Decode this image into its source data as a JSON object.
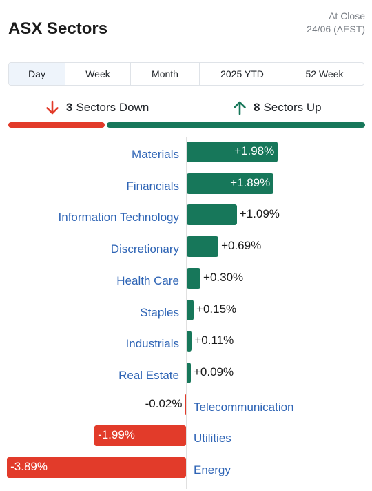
{
  "header": {
    "title": "ASX Sectors",
    "status_label": "At Close",
    "status_date": "24/06 (AEST)"
  },
  "tabs": [
    {
      "label": "Day",
      "active": true
    },
    {
      "label": "Week",
      "active": false
    },
    {
      "label": "Month",
      "active": false
    },
    {
      "label": "2025 YTD",
      "active": false
    },
    {
      "label": "52 Week",
      "active": false
    }
  ],
  "summary": {
    "down_count": "3",
    "down_label": "Sectors Down",
    "up_count": "8",
    "up_label": "Sectors Up"
  },
  "colors": {
    "up": "#17775a",
    "down": "#e23b2a",
    "label": "#2e64b5"
  },
  "chart_data": {
    "type": "bar",
    "orientation": "horizontal",
    "categories": [
      "Materials",
      "Financials",
      "Information Technology",
      "Discretionary",
      "Health Care",
      "Staples",
      "Industrials",
      "Real Estate",
      "Telecommunication",
      "Utilities",
      "Energy"
    ],
    "values": [
      1.98,
      1.89,
      1.09,
      0.69,
      0.3,
      0.15,
      0.11,
      0.09,
      -0.02,
      -1.99,
      -3.89
    ],
    "value_labels": [
      "+1.98%",
      "+1.89%",
      "+1.09%",
      "+0.69%",
      "+0.30%",
      "+0.15%",
      "+0.11%",
      "+0.09%",
      "-0.02%",
      "-1.99%",
      "-3.89%"
    ],
    "unit": "%",
    "xlim": [
      -3.89,
      1.98
    ]
  }
}
